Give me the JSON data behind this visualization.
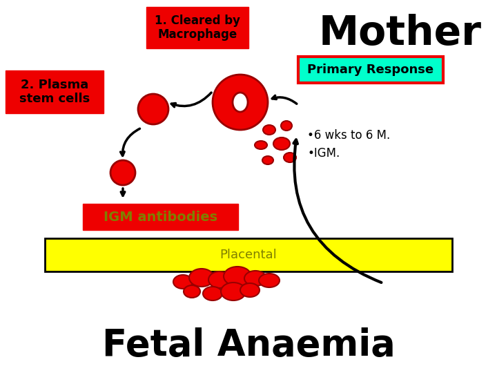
{
  "bg_color": "#ffffff",
  "title_mother": "Mother",
  "title_fetal": "Fetal Anaemia",
  "label_cleared": "1. Cleared by\nMacrophage",
  "label_plasma": "2. Plasma\nstem cells",
  "label_igm": "IGM antibodies",
  "label_placental": "Placental",
  "label_primary": "Primary Response",
  "label_6wks": "•6 wks to 6 M.",
  "label_igm_bullet": "•IGM.",
  "red_color": "#ee0000",
  "yellow_color": "#ffff00",
  "cyan_color": "#00ffcc",
  "black_color": "#000000",
  "white_color": "#ffffff",
  "dark_red": "#990000",
  "olive_color": "#808000"
}
